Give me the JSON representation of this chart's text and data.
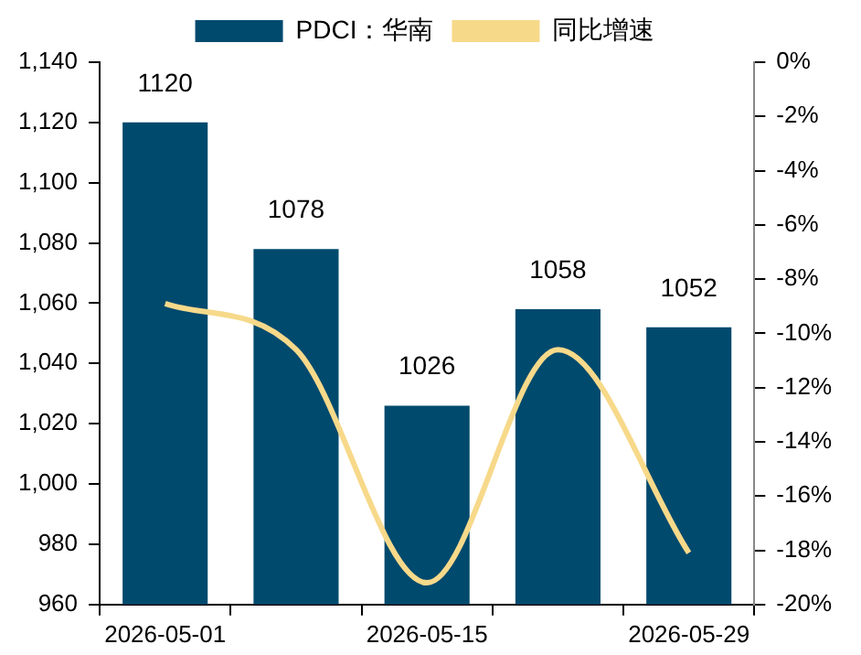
{
  "chart_data": {
    "type": "bar",
    "categories": [
      "2026-05-01",
      null,
      "2026-05-15",
      null,
      "2026-05-29"
    ],
    "series": [
      {
        "name": "PDCI：华南",
        "color": "#004a6e",
        "values": [
          1120,
          1078,
          1026,
          1058,
          1052
        ],
        "value_labels": [
          "1120",
          "1078",
          "1026",
          "1058",
          "1052"
        ]
      },
      {
        "name": "同比增速",
        "type": "line",
        "axis": "y2",
        "color": "#f7d98a",
        "values": [
          -8.9,
          -10.6,
          -19.2,
          -10.6,
          -18.1
        ]
      }
    ],
    "ylim": [
      960,
      1140
    ],
    "yticks": [
      {
        "value": 960,
        "label": "960"
      },
      {
        "value": 980,
        "label": "980"
      },
      {
        "value": 1000,
        "label": "1,000"
      },
      {
        "value": 1020,
        "label": "1,020"
      },
      {
        "value": 1040,
        "label": "1,040"
      },
      {
        "value": 1060,
        "label": "1,060"
      },
      {
        "value": 1080,
        "label": "1,080"
      },
      {
        "value": 1100,
        "label": "1,100"
      },
      {
        "value": 1120,
        "label": "1,120"
      },
      {
        "value": 1140,
        "label": "1,140"
      }
    ],
    "y2lim": [
      -20,
      0
    ],
    "y2ticks": [
      {
        "value": -20,
        "label": "-20%"
      },
      {
        "value": -18,
        "label": "-18%"
      },
      {
        "value": -16,
        "label": "-16%"
      },
      {
        "value": -14,
        "label": "-14%"
      },
      {
        "value": -12,
        "label": "-12%"
      },
      {
        "value": -10,
        "label": "-10%"
      },
      {
        "value": -8,
        "label": "-8%"
      },
      {
        "value": -6,
        "label": "-6%"
      },
      {
        "value": -4,
        "label": "-4%"
      },
      {
        "value": -2,
        "label": "-2%"
      },
      {
        "value": 0,
        "label": "0%"
      }
    ],
    "legend": "top",
    "grid": false,
    "marker": "none",
    "line_style": "solid"
  }
}
